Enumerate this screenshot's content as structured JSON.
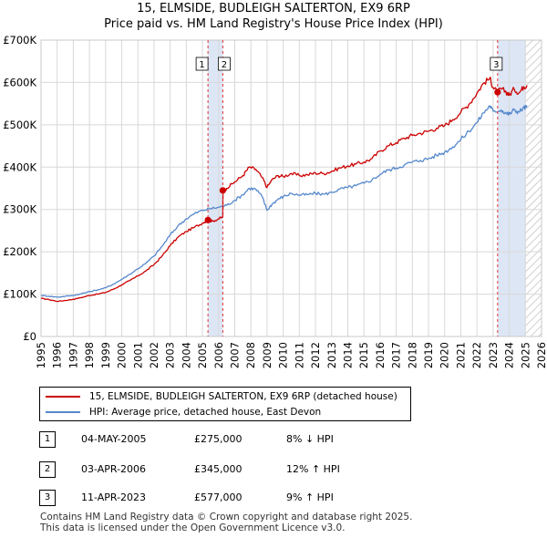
{
  "title_line1": "15, ELMSIDE, BUDLEIGH SALTERTON, EX9 6RP",
  "title_line2": "Price paid vs. HM Land Registry's House Price Index (HPI)",
  "chart_data": {
    "type": "line",
    "xlim": [
      1995,
      2026
    ],
    "ylim": [
      0,
      700000
    ],
    "yticks": [
      0,
      100000,
      200000,
      300000,
      400000,
      500000,
      600000,
      700000
    ],
    "ytick_labels": [
      "£0",
      "£100K",
      "£200K",
      "£300K",
      "£400K",
      "£500K",
      "£600K",
      "£700K"
    ],
    "xticks": [
      1995,
      1996,
      1997,
      1998,
      1999,
      2000,
      2001,
      2002,
      2003,
      2004,
      2005,
      2006,
      2007,
      2008,
      2009,
      2010,
      2011,
      2012,
      2013,
      2014,
      2015,
      2016,
      2017,
      2018,
      2019,
      2020,
      2021,
      2022,
      2023,
      2024,
      2025,
      2026
    ],
    "grid": true,
    "future_hatch_from": 2025.0,
    "series": [
      {
        "name": "15, ELMSIDE, BUDLEIGH SALTERTON, EX9 6RP (detached house)",
        "color": "#cc0000",
        "x": [
          1995.0,
          1995.5,
          1996.0,
          1996.5,
          1997.0,
          1997.5,
          1998.0,
          1998.5,
          1999.0,
          1999.5,
          2000.0,
          2000.5,
          2001.0,
          2001.5,
          2002.0,
          2002.5,
          2003.0,
          2003.5,
          2004.0,
          2004.5,
          2005.0,
          2005.34,
          2005.6,
          2006.0,
          2006.26,
          2006.27,
          2006.5,
          2007.0,
          2007.5,
          2007.9,
          2008.3,
          2008.7,
          2009.0,
          2009.3,
          2009.7,
          2010.0,
          2010.5,
          2011.0,
          2011.5,
          2012.0,
          2012.5,
          2013.0,
          2013.5,
          2014.0,
          2014.5,
          2015.0,
          2015.5,
          2016.0,
          2016.5,
          2017.0,
          2017.5,
          2018.0,
          2018.5,
          2019.0,
          2019.5,
          2020.0,
          2020.5,
          2021.0,
          2021.5,
          2022.0,
          2022.4,
          2022.8,
          2023.0,
          2023.28,
          2023.5,
          2023.8,
          2024.0,
          2024.3,
          2024.6,
          2024.9,
          2025.1
        ],
        "y": [
          90000,
          87000,
          83000,
          85000,
          88000,
          92000,
          97000,
          100000,
          104000,
          112000,
          122000,
          132000,
          143000,
          155000,
          170000,
          190000,
          215000,
          235000,
          248000,
          258000,
          268000,
          275000,
          272000,
          278000,
          282000,
          345000,
          350000,
          365000,
          380000,
          400000,
          395000,
          375000,
          352000,
          370000,
          380000,
          378000,
          385000,
          380000,
          382000,
          386000,
          385000,
          390000,
          398000,
          403000,
          407000,
          412000,
          420000,
          438000,
          450000,
          458000,
          468000,
          475000,
          480000,
          485000,
          492000,
          498000,
          512000,
          530000,
          548000,
          575000,
          598000,
          610000,
          588000,
          577000,
          585000,
          578000,
          570000,
          585000,
          575000,
          590000,
          593000
        ]
      },
      {
        "name": "HPI: Average price, detached house, East Devon",
        "color": "#5588cc",
        "x": [
          1995.0,
          1995.5,
          1996.0,
          1996.5,
          1997.0,
          1997.5,
          1998.0,
          1998.5,
          1999.0,
          1999.5,
          2000.0,
          2000.5,
          2001.0,
          2001.5,
          2002.0,
          2002.5,
          2003.0,
          2003.5,
          2004.0,
          2004.5,
          2005.0,
          2005.5,
          2006.0,
          2006.5,
          2007.0,
          2007.5,
          2007.9,
          2008.3,
          2008.7,
          2009.0,
          2009.3,
          2009.7,
          2010.0,
          2010.5,
          2011.0,
          2011.5,
          2012.0,
          2012.5,
          2013.0,
          2013.5,
          2014.0,
          2014.5,
          2015.0,
          2015.5,
          2016.0,
          2016.5,
          2017.0,
          2017.5,
          2018.0,
          2018.5,
          2019.0,
          2019.5,
          2020.0,
          2020.5,
          2021.0,
          2021.5,
          2022.0,
          2022.4,
          2022.8,
          2023.0,
          2023.5,
          2023.8,
          2024.0,
          2024.3,
          2024.6,
          2024.9,
          2025.1
        ],
        "y": [
          97000,
          95000,
          93000,
          95000,
          97000,
          101000,
          106000,
          110000,
          115000,
          124000,
          135000,
          147000,
          160000,
          173000,
          190000,
          213000,
          240000,
          262000,
          278000,
          290000,
          298000,
          302000,
          305000,
          310000,
          322000,
          335000,
          350000,
          348000,
          330000,
          298000,
          312000,
          325000,
          330000,
          338000,
          334000,
          335000,
          338000,
          336000,
          340000,
          348000,
          352000,
          356000,
          362000,
          370000,
          383000,
          393000,
          398000,
          405000,
          412000,
          416000,
          420000,
          428000,
          435000,
          448000,
          465000,
          485000,
          505000,
          528000,
          545000,
          532000,
          535000,
          528000,
          525000,
          535000,
          530000,
          540000,
          542000
        ]
      }
    ],
    "sales": [
      {
        "label": "1",
        "x": 2005.34,
        "y": 275000
      },
      {
        "label": "2",
        "x": 2006.26,
        "y": 345000
      },
      {
        "label": "3",
        "x": 2023.28,
        "y": 577000
      }
    ]
  },
  "legend": {
    "property_label": "15, ELMSIDE, BUDLEIGH SALTERTON, EX9 6RP (detached house)",
    "hpi_label": "HPI: Average price, detached house, East Devon"
  },
  "transactions": [
    {
      "num": "1",
      "date": "04-MAY-2005",
      "price": "£275,000",
      "hpi": "8% ↓ HPI"
    },
    {
      "num": "2",
      "date": "03-APR-2006",
      "price": "£345,000",
      "hpi": "12% ↑ HPI"
    },
    {
      "num": "3",
      "date": "11-APR-2023",
      "price": "£577,000",
      "hpi": "9% ↑ HPI"
    }
  ],
  "footer_line1": "Contains HM Land Registry data © Crown copyright and database right 2025.",
  "footer_line2": "This data is licensed under the Open Government Licence v3.0.",
  "colors": {
    "property": "#cc0000",
    "hpi": "#5588cc",
    "highlight": "#dde6f5",
    "grid": "#d8d8d8",
    "marker_line": "#dd3333"
  }
}
